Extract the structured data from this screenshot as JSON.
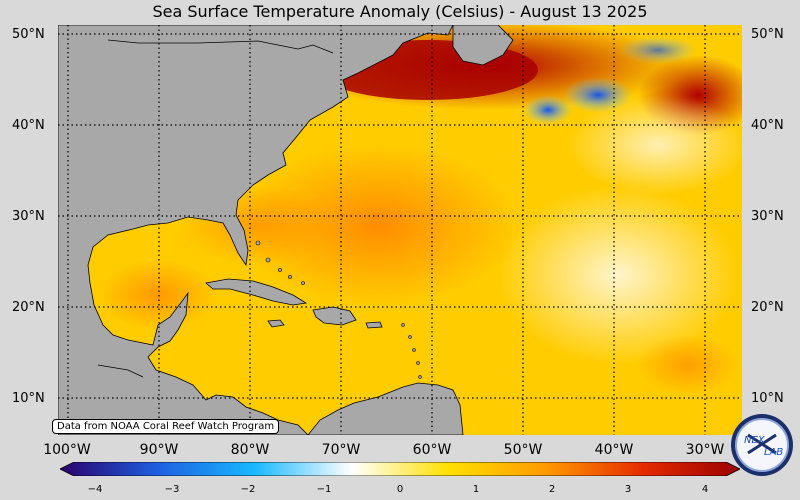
{
  "title": "Sea Surface Temperature Anomaly (Celsius) - August 13 2025",
  "latitude_labels": [
    "50°N",
    "40°N",
    "30°N",
    "20°N",
    "10°N"
  ],
  "longitude_labels": [
    "100°W",
    "90°W",
    "80°W",
    "70°W",
    "60°W",
    "50°W",
    "40°W",
    "30°W"
  ],
  "credit": "Data from NOAA Coral Reef Watch Program",
  "colorbar": {
    "ticks": [
      "−4",
      "−3",
      "−2",
      "−1",
      "0",
      "1",
      "2",
      "3",
      "4"
    ],
    "colors": [
      "#2a006b",
      "#1e5fe0",
      "#19b8ff",
      "#ffffff",
      "#ffe000",
      "#ff9a00",
      "#e52b00",
      "#9a0000"
    ]
  },
  "logo": {
    "text": "NEX LAB"
  },
  "colors": {
    "land": "#a8a8a8",
    "background": "#d9d9d9"
  }
}
